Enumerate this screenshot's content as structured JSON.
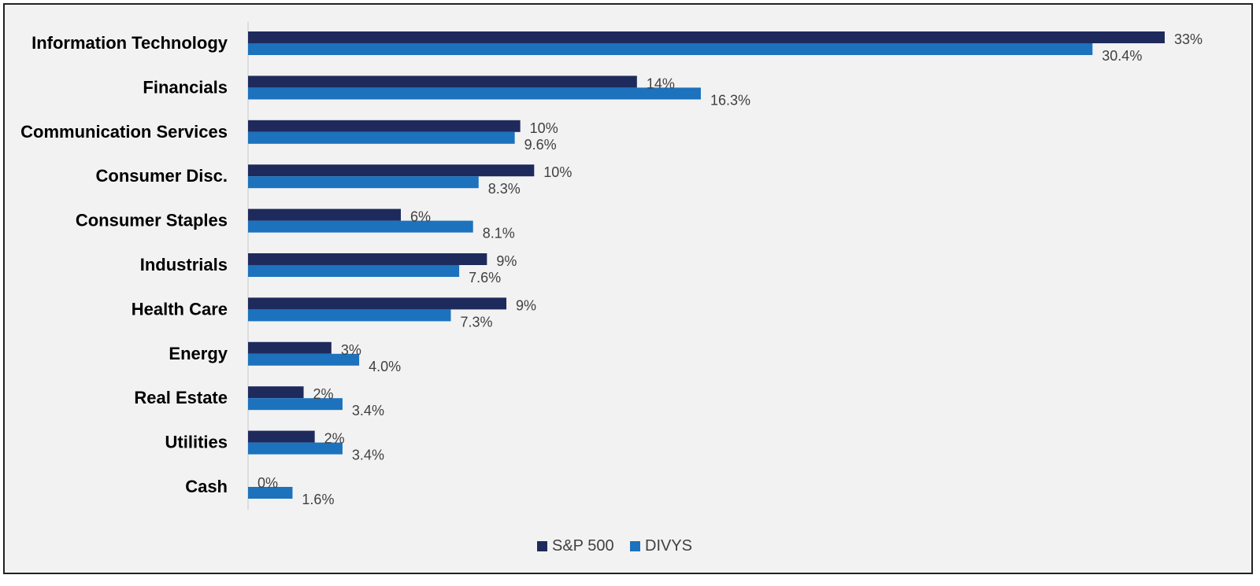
{
  "chart_data": {
    "type": "bar",
    "orientation": "horizontal",
    "title": "",
    "xlabel": "",
    "ylabel": "",
    "xlim": [
      0,
      33
    ],
    "grid": false,
    "legend_position": "bottom",
    "categories": [
      "Information Technology",
      "Financials",
      "Communication Services",
      "Consumer Disc.",
      "Consumer Staples",
      "Industrials",
      "Health Care",
      "Energy",
      "Real Estate",
      "Utilities",
      "Cash"
    ],
    "series": [
      {
        "name": "S&P 500",
        "color": "#1f2a5c",
        "values": [
          33,
          14,
          9.8,
          10.3,
          5.5,
          8.6,
          9.3,
          3,
          2,
          2.4,
          0
        ],
        "labels": [
          "33%",
          "14%",
          "10%",
          "10%",
          "6%",
          "9%",
          "9%",
          "3%",
          "2%",
          "2%",
          "0%"
        ]
      },
      {
        "name": "DIVYS",
        "color": "#1c72bd",
        "values": [
          30.4,
          16.3,
          9.6,
          8.3,
          8.1,
          7.6,
          7.3,
          4.0,
          3.4,
          3.4,
          1.6
        ],
        "labels": [
          "30.4%",
          "16.3%",
          "9.6%",
          "8.3%",
          "8.1%",
          "7.6%",
          "7.3%",
          "4.0%",
          "3.4%",
          "3.4%",
          "1.6%"
        ]
      }
    ]
  }
}
